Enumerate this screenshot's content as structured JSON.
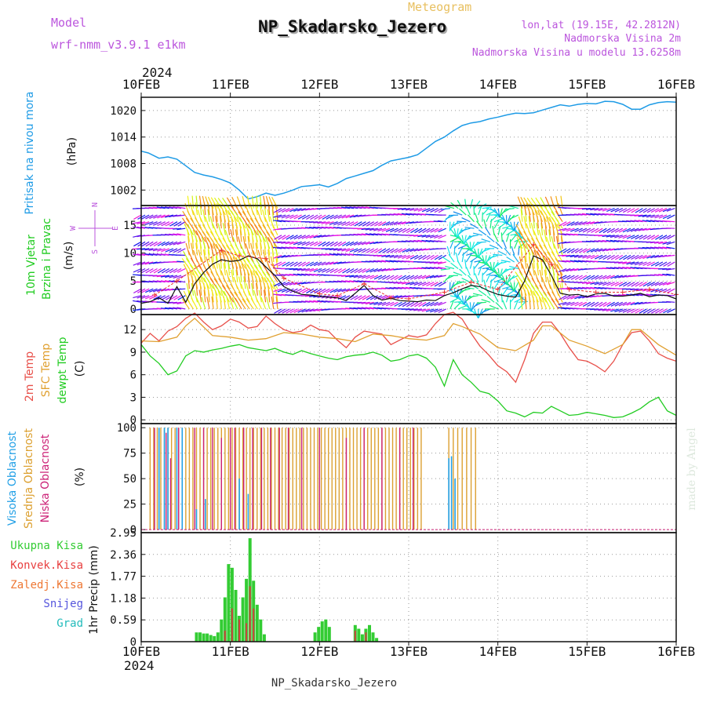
{
  "header": {
    "model_label": "Model",
    "model_name": "wrf-nmm_v3.9.1 e1km",
    "product": "Meteogram",
    "station": "NP_Skadarsko_Jezero",
    "lonlat": "lon,lat (19.15E, 42.2812N)",
    "elevation": "Nadmorska Visina 2m",
    "model_elevation": "Nadmorska Visina u modelu 13.6258m",
    "credit": "made by Angel",
    "footer_station": "NP_Skadarsko_Jezero"
  },
  "colors": {
    "pressure": "#1e9be6",
    "temp2m": "#e8504a",
    "sfc_temp": "#e0a030",
    "dewpt": "#22cc22",
    "cloud_high": "#22a0e6",
    "cloud_mid": "#dca030",
    "cloud_low": "#cc2277",
    "precip_total": "#33cc33",
    "precip_conv": "#d04040",
    "gust": "#e83030",
    "speed_line": "#111111",
    "label_magenta": "#bb55dd",
    "label_gold": "#e8c060"
  },
  "chart_data": {
    "type": "meteogram",
    "year": "2024",
    "date_ticks": [
      "10FEB",
      "11FEB",
      "12FEB",
      "13FEB",
      "14FEB",
      "15FEB",
      "16FEB"
    ],
    "panels": [
      {
        "id": "pressure",
        "title": "Pritisak na nivou mora",
        "unit": "(hPa)",
        "ylim": [
          998.5,
          1023
        ],
        "yticks": [
          1002,
          1008,
          1014,
          1020
        ],
        "series": [
          {
            "type": "line",
            "x": [
              0,
              0.08,
              0.2,
              0.3,
              0.4,
              0.5,
              0.6,
              0.7,
              0.8,
              0.9,
              1.0,
              1.1,
              1.2,
              1.3,
              1.4,
              1.5,
              1.6,
              1.7,
              1.8,
              1.9,
              2.0,
              2.1,
              2.2,
              2.3,
              2.4,
              2.5,
              2.6,
              2.7,
              2.8,
              2.9,
              3.0,
              3.1,
              3.2,
              3.3,
              3.4,
              3.5,
              3.6,
              3.7,
              3.8,
              3.9,
              4.0,
              4.1,
              4.2,
              4.3,
              4.4,
              4.5,
              4.6,
              4.7,
              4.8,
              4.9,
              5.0,
              5.1,
              5.2,
              5.3,
              5.4,
              5.5,
              5.6,
              5.7,
              5.8,
              5.9,
              6.0
            ],
            "y": [
              1010.8,
              1010.4,
              1009.2,
              1009.5,
              1009.0,
              1007.5,
              1006.0,
              1005.4,
              1005.0,
              1004.4,
              1003.6,
              1002.0,
              1000.0,
              1000.5,
              1001.3,
              1000.8,
              1001.3,
              1002.0,
              1002.8,
              1003.0,
              1003.2,
              1002.7,
              1003.5,
              1004.6,
              1005.2,
              1005.8,
              1006.4,
              1007.6,
              1008.6,
              1009.0,
              1009.4,
              1010.0,
              1011.5,
              1013.0,
              1014.0,
              1015.4,
              1016.6,
              1017.2,
              1017.5,
              1018.1,
              1018.5,
              1019.0,
              1019.4,
              1019.3,
              1019.5,
              1020.1,
              1020.7,
              1021.3,
              1021.0,
              1021.4,
              1021.6,
              1021.5,
              1022.1,
              1022.0,
              1021.4,
              1020.3,
              1020.3,
              1021.3,
              1021.8,
              1022.0,
              1021.9
            ]
          }
        ]
      },
      {
        "id": "wind",
        "title": "10m Vjetar",
        "title2": "Brzina i Pravac",
        "unit": "(m/s)",
        "compass": [
          "N",
          "E",
          "W",
          "S"
        ],
        "ylim": [
          -1,
          18.5
        ],
        "yticks": [
          0,
          5,
          10,
          15
        ],
        "speed": {
          "x": [
            0,
            0.1,
            0.2,
            0.3,
            0.4,
            0.5,
            0.6,
            0.7,
            0.8,
            0.9,
            1.0,
            1.1,
            1.2,
            1.3,
            1.4,
            1.5,
            1.6,
            1.7,
            1.8,
            1.9,
            2.0,
            2.1,
            2.2,
            2.3,
            2.4,
            2.5,
            2.6,
            2.7,
            2.8,
            2.9,
            3.0,
            3.1,
            3.2,
            3.3,
            3.4,
            3.5,
            3.6,
            3.7,
            3.8,
            3.9,
            4.0,
            4.1,
            4.2,
            4.3,
            4.4,
            4.5,
            4.6,
            4.7,
            4.8,
            4.9,
            5.0,
            5.1,
            5.2,
            5.3,
            5.4,
            5.5,
            5.6,
            5.7,
            5.8,
            5.9,
            6.0
          ],
          "y": [
            1.0,
            1.3,
            2.0,
            1.0,
            4.0,
            1.2,
            4.5,
            6.5,
            8.0,
            8.8,
            8.5,
            8.7,
            9.5,
            9.0,
            7.5,
            6.0,
            4.0,
            3.2,
            2.6,
            2.5,
            2.3,
            2.1,
            2.0,
            1.5,
            2.8,
            4.2,
            2.4,
            1.6,
            1.9,
            1.5,
            1.4,
            1.3,
            1.6,
            1.5,
            2.4,
            2.9,
            3.6,
            4.2,
            4.0,
            3.2,
            2.6,
            2.3,
            2.1,
            5.0,
            9.5,
            8.8,
            6.0,
            2.8,
            2.5,
            2.6,
            2.2,
            2.7,
            2.8,
            2.3,
            2.3,
            2.5,
            2.8,
            2.2,
            2.5,
            2.4,
            1.8
          ]
        },
        "gust_x": [
          0.15,
          0.4,
          0.9,
          1.1,
          1.4,
          1.6,
          2.0,
          2.2,
          2.5,
          2.8,
          3.0,
          3.4,
          3.7,
          4.0,
          4.4,
          4.6,
          4.8,
          5.1,
          5.4,
          5.7,
          6.0
        ],
        "gust_y": [
          2.5,
          5.0,
          10.5,
          9.5,
          9.0,
          5.5,
          2.7,
          2.4,
          4.5,
          2.0,
          1.8,
          3.0,
          4.8,
          3.5,
          11.5,
          8.0,
          3.5,
          3.0,
          3.0,
          3.5,
          2.6
        ],
        "calm_segments": [
          [
            0.0,
            0.5
          ],
          [
            1.55,
            3.45
          ],
          [
            4.75,
            6.0
          ]
        ],
        "strong_segments": [
          [
            0.5,
            1.55
          ],
          [
            4.25,
            4.75
          ]
        ],
        "swirl_segments": [
          [
            3.45,
            4.25
          ]
        ]
      },
      {
        "id": "temperature",
        "titles": [
          "2m Temp",
          "SFC Temp",
          "dewpt Temp"
        ],
        "unit": "(C)",
        "ylim": [
          -0.5,
          14
        ],
        "yticks": [
          0,
          3,
          6,
          9,
          12
        ],
        "series": [
          {
            "id": "temp2m",
            "x": [
              0,
              0.1,
              0.2,
              0.3,
              0.4,
              0.5,
              0.6,
              0.7,
              0.8,
              0.9,
              1.0,
              1.1,
              1.2,
              1.3,
              1.4,
              1.5,
              1.6,
              1.7,
              1.8,
              1.9,
              2.0,
              2.1,
              2.2,
              2.3,
              2.4,
              2.5,
              2.6,
              2.7,
              2.8,
              2.9,
              3.0,
              3.1,
              3.2,
              3.3,
              3.4,
              3.5,
              3.6,
              3.7,
              3.8,
              3.9,
              4.0,
              4.1,
              4.2,
              4.3,
              4.4,
              4.5,
              4.6,
              4.7,
              4.8,
              4.9,
              5.0,
              5.1,
              5.2,
              5.3,
              5.4,
              5.5,
              5.6,
              5.7,
              5.8,
              5.9,
              6.0
            ],
            "y": [
              10.2,
              11.5,
              10.5,
              11.8,
              12.4,
              13.5,
              14.2,
              13.0,
              12.0,
              12.5,
              13.4,
              13.0,
              12.2,
              12.4,
              13.8,
              12.8,
              12.0,
              11.6,
              11.8,
              12.6,
              12.0,
              11.8,
              10.6,
              9.6,
              11.0,
              11.8,
              11.6,
              11.4,
              10.0,
              10.6,
              11.2,
              11.0,
              11.3,
              12.8,
              14.0,
              14.3,
              13.4,
              11.5,
              9.8,
              8.6,
              7.2,
              6.4,
              5.0,
              8.0,
              11.5,
              13.0,
              13.0,
              11.5,
              9.6,
              8.0,
              7.8,
              7.2,
              6.4,
              7.8,
              10.0,
              11.6,
              11.8,
              10.5,
              8.8,
              8.2,
              7.8
            ]
          },
          {
            "id": "sfc",
            "x": [
              0,
              0.2,
              0.4,
              0.5,
              0.6,
              0.8,
              1.0,
              1.2,
              1.4,
              1.6,
              1.8,
              2.0,
              2.2,
              2.4,
              2.6,
              2.8,
              3.0,
              3.2,
              3.4,
              3.5,
              3.6,
              3.8,
              4.0,
              4.2,
              4.4,
              4.5,
              4.6,
              4.8,
              5.0,
              5.2,
              5.4,
              5.5,
              5.6,
              5.8,
              6.0
            ],
            "y": [
              10.5,
              10.4,
              11.0,
              12.5,
              13.5,
              11.2,
              11.0,
              10.6,
              10.8,
              11.6,
              11.4,
              11.0,
              10.8,
              10.4,
              11.4,
              11.2,
              10.8,
              10.6,
              11.2,
              12.8,
              12.4,
              11.4,
              9.6,
              9.2,
              10.6,
              12.5,
              12.5,
              10.6,
              9.8,
              8.8,
              10.0,
              12.0,
              12.0,
              10.0,
              8.6
            ]
          },
          {
            "id": "dewpt",
            "x": [
              0,
              0.1,
              0.2,
              0.3,
              0.4,
              0.5,
              0.6,
              0.7,
              0.8,
              0.9,
              1.0,
              1.1,
              1.2,
              1.3,
              1.4,
              1.5,
              1.6,
              1.7,
              1.8,
              1.9,
              2.0,
              2.1,
              2.2,
              2.3,
              2.4,
              2.5,
              2.6,
              2.7,
              2.8,
              2.9,
              3.0,
              3.1,
              3.2,
              3.3,
              3.4,
              3.5,
              3.6,
              3.7,
              3.8,
              3.9,
              4.0,
              4.1,
              4.2,
              4.3,
              4.4,
              4.5,
              4.6,
              4.7,
              4.8,
              4.9,
              5.0,
              5.1,
              5.2,
              5.3,
              5.4,
              5.5,
              5.6,
              5.7,
              5.8,
              5.9,
              6.0
            ],
            "y": [
              10.0,
              8.5,
              7.5,
              6.0,
              6.5,
              8.5,
              9.2,
              9.0,
              9.3,
              9.5,
              9.8,
              10.0,
              9.6,
              9.4,
              9.2,
              9.5,
              9.0,
              8.7,
              9.2,
              8.8,
              8.5,
              8.2,
              8.0,
              8.4,
              8.6,
              8.7,
              9.0,
              8.6,
              7.8,
              8.0,
              8.5,
              8.7,
              8.2,
              7.0,
              4.5,
              8.0,
              6.0,
              5.0,
              3.8,
              3.5,
              2.5,
              1.2,
              0.9,
              0.4,
              1.0,
              0.9,
              1.8,
              1.2,
              0.6,
              0.7,
              1.0,
              0.8,
              0.6,
              0.3,
              0.4,
              0.9,
              1.5,
              2.4,
              3.0,
              1.2,
              0.6
            ]
          }
        ]
      },
      {
        "id": "cloud",
        "titles": [
          "Visoka Oblacnost",
          "Srednja Oblacnost",
          "Niska Oblacnost"
        ],
        "unit": "(%)",
        "ylim": [
          -3,
          104
        ],
        "yticks": [
          0,
          25,
          50,
          75,
          100
        ],
        "cloud_mid_range": [
          0.1,
          3.15
        ],
        "cloud_mid_step": 0.04,
        "cloud_low_x": [
          0.15,
          0.28,
          0.33,
          0.42,
          0.6,
          0.7,
          0.8,
          0.9,
          1.0,
          1.05,
          1.15,
          1.25,
          1.35,
          1.45,
          1.55,
          1.65,
          1.8,
          2.0,
          2.3,
          2.5,
          2.7,
          2.9,
          3.05
        ],
        "cloud_low_y": [
          100,
          95,
          70,
          100,
          100,
          100,
          100,
          90,
          100,
          100,
          100,
          100,
          100,
          100,
          100,
          100,
          100,
          100,
          90,
          100,
          100,
          100,
          100
        ],
        "cloud_high_x": [
          0.2,
          0.26,
          0.3,
          0.4,
          0.46,
          0.62,
          0.72,
          1.1,
          1.2,
          3.45,
          3.48,
          3.52
        ],
        "cloud_high_y": [
          100,
          100,
          100,
          100,
          100,
          20,
          30,
          50,
          35,
          70,
          72,
          50
        ],
        "cloud_late_mid_x": [
          3.45,
          3.5,
          3.55,
          3.6,
          3.65,
          3.7,
          3.75
        ],
        "cloud_late_mid_y": [
          100,
          100,
          100,
          100,
          100,
          100,
          100
        ]
      },
      {
        "id": "precip",
        "titles": [
          "Ukupna Kisa",
          "Konvek.Kisa",
          "Zaledj.Kisa",
          "Snijeg",
          "Grad"
        ],
        "unit": "1hr Precip (mm)",
        "ylim": [
          0,
          2.95
        ],
        "yticks": [
          0,
          0.59,
          1.18,
          1.77,
          2.36,
          2.95
        ],
        "total_x": [
          0.62,
          0.66,
          0.7,
          0.74,
          0.78,
          0.82,
          0.86,
          0.9,
          0.94,
          0.98,
          1.02,
          1.06,
          1.1,
          1.14,
          1.18,
          1.22,
          1.26,
          1.3,
          1.34,
          1.38,
          1.95,
          1.99,
          2.03,
          2.07,
          2.11,
          2.4,
          2.44,
          2.48,
          2.52,
          2.56,
          2.6,
          2.64
        ],
        "total_y": [
          0.25,
          0.25,
          0.22,
          0.22,
          0.18,
          0.15,
          0.25,
          0.6,
          1.2,
          2.1,
          2.0,
          1.4,
          0.7,
          1.2,
          1.7,
          2.8,
          1.65,
          1.0,
          0.6,
          0.2,
          0.25,
          0.4,
          0.55,
          0.6,
          0.4,
          0.45,
          0.35,
          0.2,
          0.35,
          0.45,
          0.25,
          0.1
        ],
        "conv_x": [
          0.94,
          1.02,
          1.1,
          1.18,
          1.22,
          1.26,
          2.4,
          2.52
        ],
        "conv_y": [
          0.3,
          0.9,
          0.6,
          0.5,
          1.5,
          0.9,
          0.3,
          0.25
        ]
      }
    ]
  }
}
